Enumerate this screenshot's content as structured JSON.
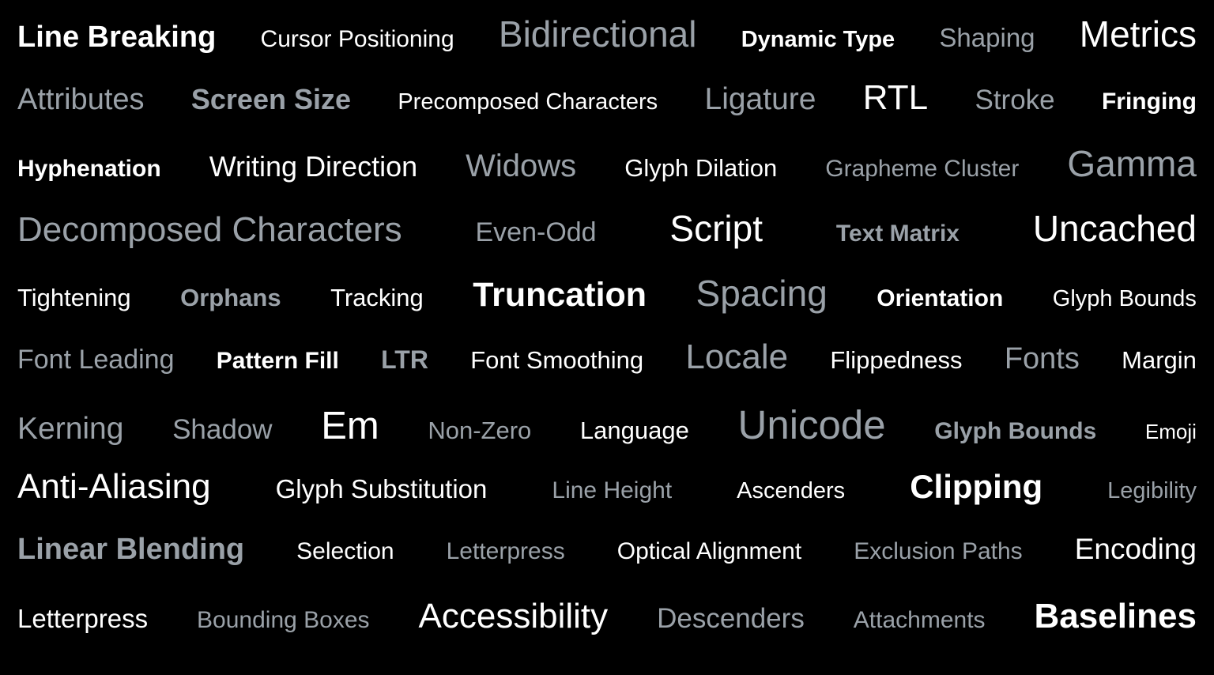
{
  "colors": {
    "background": "#000000",
    "white": "#ffffff",
    "gray": "#9aa1a8"
  },
  "rows": [
    {
      "words": [
        {
          "text": "Line Breaking",
          "tone": "white",
          "weight": "w7",
          "size": 38
        },
        {
          "text": "Cursor Positioning",
          "tone": "white",
          "weight": "w4",
          "size": 30
        },
        {
          "text": "Bidirectional",
          "tone": "gray",
          "weight": "w4",
          "size": 46
        },
        {
          "text": "Dynamic Type",
          "tone": "white",
          "weight": "w7",
          "size": 29
        },
        {
          "text": "Shaping",
          "tone": "gray",
          "weight": "w4",
          "size": 33
        },
        {
          "text": "Metrics",
          "tone": "white",
          "weight": "w4",
          "size": 46
        }
      ]
    },
    {
      "words": [
        {
          "text": "Attributes",
          "tone": "gray",
          "weight": "w4",
          "size": 38
        },
        {
          "text": "Screen Size",
          "tone": "gray",
          "weight": "w7",
          "size": 36
        },
        {
          "text": "Precomposed Characters",
          "tone": "white",
          "weight": "w4",
          "size": 29
        },
        {
          "text": "Ligature",
          "tone": "gray",
          "weight": "w4",
          "size": 39
        },
        {
          "text": "RTL",
          "tone": "white",
          "weight": "w4",
          "size": 44
        },
        {
          "text": "Stroke",
          "tone": "gray",
          "weight": "w4",
          "size": 35
        },
        {
          "text": "Fringing",
          "tone": "white",
          "weight": "w7",
          "size": 30
        }
      ]
    },
    {
      "words": [
        {
          "text": "Hyphenation",
          "tone": "white",
          "weight": "w7",
          "size": 30
        },
        {
          "text": "Writing Direction",
          "tone": "white",
          "weight": "w4",
          "size": 36
        },
        {
          "text": "Widows",
          "tone": "gray",
          "weight": "w4",
          "size": 40
        },
        {
          "text": "Glyph Dilation",
          "tone": "white",
          "weight": "w4",
          "size": 31
        },
        {
          "text": "Grapheme Cluster",
          "tone": "gray",
          "weight": "w4",
          "size": 30
        },
        {
          "text": "Gamma",
          "tone": "gray",
          "weight": "w4",
          "size": 46
        }
      ]
    },
    {
      "words": [
        {
          "text": "Decomposed Characters",
          "tone": "gray",
          "weight": "w4",
          "size": 44
        },
        {
          "text": "Even-Odd",
          "tone": "gray",
          "weight": "w4",
          "size": 34
        },
        {
          "text": "Script",
          "tone": "white",
          "weight": "w4",
          "size": 46
        },
        {
          "text": "Text Matrix",
          "tone": "gray",
          "weight": "w7",
          "size": 30
        },
        {
          "text": "Uncached",
          "tone": "white",
          "weight": "w4",
          "size": 46
        }
      ]
    },
    {
      "words": [
        {
          "text": "Tightening",
          "tone": "white",
          "weight": "w4",
          "size": 31
        },
        {
          "text": "Orphans",
          "tone": "gray",
          "weight": "w7",
          "size": 31
        },
        {
          "text": "Tracking",
          "tone": "white",
          "weight": "w4",
          "size": 31
        },
        {
          "text": "Truncation",
          "tone": "white",
          "weight": "w7",
          "size": 43
        },
        {
          "text": "Spacing",
          "tone": "gray",
          "weight": "w4",
          "size": 46
        },
        {
          "text": "Orientation",
          "tone": "white",
          "weight": "w7",
          "size": 30
        },
        {
          "text": "Glyph Bounds",
          "tone": "white",
          "weight": "w4",
          "size": 29
        }
      ]
    },
    {
      "words": [
        {
          "text": "Font Leading",
          "tone": "gray",
          "weight": "w4",
          "size": 34
        },
        {
          "text": "Pattern Fill",
          "tone": "white",
          "weight": "w7",
          "size": 30
        },
        {
          "text": "LTR",
          "tone": "gray",
          "weight": "w7",
          "size": 32
        },
        {
          "text": "Font Smoothing",
          "tone": "white",
          "weight": "w4",
          "size": 31
        },
        {
          "text": "Locale",
          "tone": "gray",
          "weight": "w4",
          "size": 44
        },
        {
          "text": "Flippedness",
          "tone": "white",
          "weight": "w4",
          "size": 31
        },
        {
          "text": "Fonts",
          "tone": "gray",
          "weight": "w4",
          "size": 38
        },
        {
          "text": "Margin",
          "tone": "white",
          "weight": "w4",
          "size": 31
        }
      ]
    },
    {
      "words": [
        {
          "text": "Kerning",
          "tone": "gray",
          "weight": "w4",
          "size": 39
        },
        {
          "text": "Shadow",
          "tone": "gray",
          "weight": "w4",
          "size": 35
        },
        {
          "text": "Em",
          "tone": "white",
          "weight": "w4",
          "size": 49
        },
        {
          "text": "Non-Zero",
          "tone": "gray",
          "weight": "w4",
          "size": 31
        },
        {
          "text": "Language",
          "tone": "white",
          "weight": "w4",
          "size": 31
        },
        {
          "text": "Unicode",
          "tone": "gray",
          "weight": "w4",
          "size": 51
        },
        {
          "text": "Glyph Bounds",
          "tone": "gray",
          "weight": "w7",
          "size": 30
        },
        {
          "text": "Emoji",
          "tone": "white",
          "weight": "w4",
          "size": 26
        }
      ]
    },
    {
      "words": [
        {
          "text": "Anti-Aliasing",
          "tone": "white",
          "weight": "w4",
          "size": 44
        },
        {
          "text": "Glyph Substitution",
          "tone": "white",
          "weight": "w4",
          "size": 33
        },
        {
          "text": "Line Height",
          "tone": "gray",
          "weight": "w4",
          "size": 30
        },
        {
          "text": "Ascenders",
          "tone": "white",
          "weight": "w4",
          "size": 29
        },
        {
          "text": "Clipping",
          "tone": "white",
          "weight": "w7",
          "size": 42
        },
        {
          "text": "Legibility",
          "tone": "gray",
          "weight": "w4",
          "size": 29
        }
      ]
    },
    {
      "words": [
        {
          "text": "Linear Blending",
          "tone": "gray",
          "weight": "w7",
          "size": 38
        },
        {
          "text": "Selection",
          "tone": "white",
          "weight": "w4",
          "size": 30
        },
        {
          "text": "Letterpress",
          "tone": "gray",
          "weight": "w4",
          "size": 30
        },
        {
          "text": "Optical Alignment",
          "tone": "white",
          "weight": "w4",
          "size": 30
        },
        {
          "text": "Exclusion Paths",
          "tone": "gray",
          "weight": "w4",
          "size": 30
        },
        {
          "text": "Encoding",
          "tone": "white",
          "weight": "w4",
          "size": 37
        }
      ]
    },
    {
      "words": [
        {
          "text": "Letterpress",
          "tone": "white",
          "weight": "w4",
          "size": 33
        },
        {
          "text": "Bounding Boxes",
          "tone": "gray",
          "weight": "w4",
          "size": 30
        },
        {
          "text": "Accessibility",
          "tone": "white",
          "weight": "w4",
          "size": 44
        },
        {
          "text": "Descenders",
          "tone": "gray",
          "weight": "w4",
          "size": 35
        },
        {
          "text": "Attachments",
          "tone": "gray",
          "weight": "w4",
          "size": 30
        },
        {
          "text": "Baselines",
          "tone": "white",
          "weight": "w7",
          "size": 44
        }
      ]
    }
  ]
}
